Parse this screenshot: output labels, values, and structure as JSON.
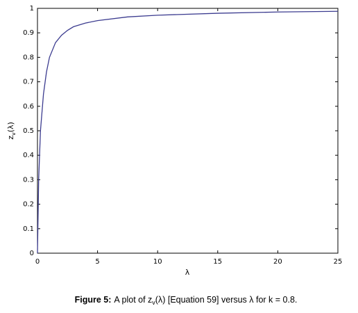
{
  "chart_data": {
    "type": "line",
    "xlabel": "λ",
    "ylabel": {
      "base": "z",
      "sub": "v",
      "rest": "(λ)"
    },
    "caption": {
      "label": "Figure 5:",
      "before": "A plot of z",
      "sub": "v",
      "after": "(λ) [Equation 59] versus λ for k = 0.8."
    },
    "x": [
      0,
      0.1,
      0.25,
      0.5,
      0.75,
      1,
      1.5,
      2,
      2.5,
      3,
      4,
      5,
      7.5,
      10,
      15,
      20,
      25
    ],
    "values": [
      0,
      0.3,
      0.5,
      0.65,
      0.74,
      0.8,
      0.86,
      0.89,
      0.91,
      0.925,
      0.94,
      0.95,
      0.965,
      0.972,
      0.98,
      0.985,
      0.988
    ],
    "color": "#3b3b8f",
    "xlim": [
      0,
      25
    ],
    "xticks": [
      0,
      5,
      10,
      15,
      20,
      25
    ],
    "ylim": [
      0,
      1
    ],
    "yticks": [
      0,
      0.1,
      0.2,
      0.3,
      0.4,
      0.5,
      0.6,
      0.7,
      0.8,
      0.9,
      1
    ]
  }
}
